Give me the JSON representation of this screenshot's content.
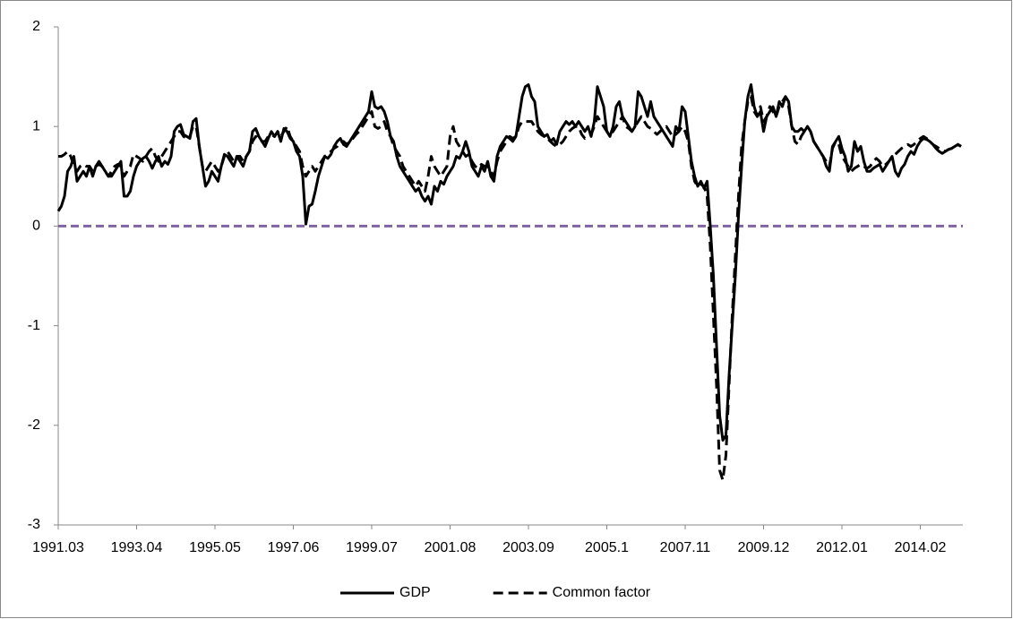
{
  "chart_data": {
    "type": "line",
    "categories": [
      "1991.03",
      null,
      null,
      null,
      null,
      null,
      null,
      null,
      null,
      null,
      null,
      null,
      null,
      null,
      null,
      null,
      null,
      null,
      null,
      null,
      null,
      null,
      null,
      null,
      null,
      "1993.04",
      null,
      null,
      null,
      null,
      null,
      null,
      null,
      null,
      null,
      null,
      null,
      null,
      null,
      null,
      null,
      null,
      null,
      null,
      null,
      null,
      null,
      null,
      null,
      null,
      "1995.05",
      null,
      null,
      null,
      null,
      null,
      null,
      null,
      null,
      null,
      null,
      null,
      null,
      null,
      null,
      null,
      null,
      null,
      null,
      null,
      null,
      null,
      null,
      null,
      null,
      "1997.06",
      null,
      null,
      null,
      null,
      null,
      null,
      null,
      null,
      null,
      null,
      null,
      null,
      null,
      null,
      null,
      null,
      null,
      null,
      null,
      null,
      null,
      null,
      null,
      null,
      "1999.07",
      null,
      null,
      null,
      null,
      null,
      null,
      null,
      null,
      null,
      null,
      null,
      null,
      null,
      null,
      null,
      null,
      null,
      null,
      null,
      null,
      null,
      null,
      null,
      null,
      "2001.08",
      null,
      null,
      null,
      null,
      null,
      null,
      null,
      null,
      null,
      null,
      null,
      null,
      null,
      null,
      null,
      null,
      null,
      null,
      null,
      null,
      null,
      null,
      null,
      null,
      "2003.09",
      null,
      null,
      null,
      null,
      null,
      null,
      null,
      null,
      null,
      null,
      null,
      null,
      null,
      null,
      null,
      null,
      null,
      null,
      null,
      null,
      null,
      null,
      null,
      null,
      "2005.1",
      null,
      null,
      null,
      null,
      null,
      null,
      null,
      null,
      null,
      null,
      null,
      null,
      null,
      null,
      null,
      null,
      null,
      null,
      null,
      null,
      null,
      null,
      null,
      null,
      "2007.11",
      null,
      null,
      null,
      null,
      null,
      null,
      null,
      null,
      null,
      null,
      null,
      null,
      null,
      null,
      null,
      null,
      null,
      null,
      null,
      null,
      null,
      null,
      null,
      null,
      "2009.12",
      null,
      null,
      null,
      null,
      null,
      null,
      null,
      null,
      null,
      null,
      null,
      null,
      null,
      null,
      null,
      null,
      null,
      null,
      null,
      null,
      null,
      null,
      null,
      null,
      "2012.01",
      null,
      null,
      null,
      null,
      null,
      null,
      null,
      null,
      null,
      null,
      null,
      null,
      null,
      null,
      null,
      null,
      null,
      null,
      null,
      null,
      null,
      null,
      null,
      null,
      "2014.02",
      null,
      null,
      null,
      null,
      null,
      null,
      null,
      null,
      null,
      null,
      null,
      null,
      null
    ],
    "series": [
      {
        "name": "GDP",
        "color": "#000000",
        "dash": "solid",
        "values": [
          0.15,
          0.2,
          0.3,
          0.55,
          0.6,
          0.7,
          0.45,
          0.5,
          0.55,
          0.5,
          0.6,
          0.5,
          0.6,
          0.65,
          0.6,
          0.55,
          0.5,
          0.5,
          0.55,
          0.6,
          0.65,
          0.3,
          0.3,
          0.35,
          0.5,
          0.6,
          0.65,
          0.68,
          0.7,
          0.65,
          0.58,
          0.65,
          0.7,
          0.6,
          0.65,
          0.62,
          0.7,
          0.95,
          1.0,
          1.02,
          0.92,
          0.9,
          0.88,
          1.05,
          1.08,
          0.8,
          0.6,
          0.4,
          0.45,
          0.55,
          0.5,
          0.45,
          0.6,
          0.72,
          0.7,
          0.65,
          0.6,
          0.7,
          0.65,
          0.6,
          0.7,
          0.75,
          0.95,
          0.98,
          0.9,
          0.85,
          0.8,
          0.88,
          0.95,
          0.9,
          0.95,
          0.85,
          0.98,
          0.95,
          0.88,
          0.85,
          0.75,
          0.7,
          0.5,
          0.02,
          0.2,
          0.22,
          0.35,
          0.5,
          0.6,
          0.7,
          0.68,
          0.72,
          0.8,
          0.85,
          0.88,
          0.82,
          0.8,
          0.85,
          0.9,
          0.95,
          1.0,
          1.05,
          1.1,
          1.15,
          1.35,
          1.2,
          1.18,
          1.2,
          1.15,
          1.05,
          0.9,
          0.85,
          0.7,
          0.6,
          0.55,
          0.5,
          0.45,
          0.4,
          0.35,
          0.38,
          0.3,
          0.25,
          0.3,
          0.22,
          0.4,
          0.35,
          0.45,
          0.42,
          0.5,
          0.55,
          0.6,
          0.7,
          0.68,
          0.75,
          0.85,
          0.75,
          0.6,
          0.55,
          0.5,
          0.6,
          0.55,
          0.65,
          0.5,
          0.45,
          0.7,
          0.8,
          0.85,
          0.9,
          0.88,
          0.85,
          0.9,
          1.1,
          1.3,
          1.4,
          1.42,
          1.3,
          1.25,
          1.0,
          0.95,
          0.9,
          0.92,
          0.85,
          0.88,
          0.82,
          0.95,
          1.0,
          1.05,
          1.02,
          1.05,
          1.0,
          1.05,
          1.0,
          0.95,
          1.0,
          0.9,
          1.05,
          1.4,
          1.3,
          1.2,
          0.95,
          0.9,
          1.0,
          1.2,
          1.25,
          1.1,
          1.05,
          1.0,
          0.95,
          1.0,
          1.35,
          1.3,
          1.2,
          1.1,
          1.25,
          1.1,
          1.05,
          1.0,
          0.95,
          0.9,
          0.85,
          0.8,
          1.0,
          0.95,
          1.2,
          1.15,
          0.9,
          0.65,
          0.5,
          0.4,
          0.45,
          0.38,
          0.45,
          0.0,
          -0.5,
          -1.2,
          -1.9,
          -2.15,
          -2.1,
          -1.5,
          -1.0,
          -0.5,
          0.1,
          0.6,
          1.05,
          1.3,
          1.42,
          1.2,
          1.1,
          1.15,
          0.95,
          1.1,
          1.15,
          1.2,
          1.1,
          1.25,
          1.2,
          1.3,
          1.25,
          1.0,
          0.95,
          0.95,
          0.98,
          0.95,
          1.0,
          0.95,
          0.85,
          0.8,
          0.75,
          0.7,
          0.6,
          0.55,
          0.8,
          0.85,
          0.9,
          0.78,
          0.7,
          0.55,
          0.6,
          0.85,
          0.75,
          0.8,
          0.65,
          0.55,
          0.55,
          0.58,
          0.6,
          0.62,
          0.55,
          0.6,
          0.65,
          0.7,
          0.55,
          0.5,
          0.58,
          0.62,
          0.7,
          0.75,
          0.72,
          0.8,
          0.85,
          0.88,
          0.87,
          0.85,
          0.82,
          0.78,
          0.75,
          0.73,
          0.75,
          0.77,
          0.78,
          0.8,
          0.82,
          0.8
        ]
      },
      {
        "name": "Common factor",
        "color": "#000000",
        "dash": "dashed",
        "values": [
          0.7,
          0.7,
          0.72,
          0.75,
          0.7,
          0.6,
          0.55,
          0.6,
          0.62,
          0.6,
          0.6,
          0.55,
          0.6,
          0.62,
          0.6,
          0.55,
          0.5,
          0.55,
          0.6,
          0.62,
          0.6,
          0.5,
          0.55,
          0.6,
          0.72,
          0.7,
          0.68,
          0.65,
          0.7,
          0.75,
          0.78,
          0.7,
          0.65,
          0.7,
          0.75,
          0.8,
          0.85,
          0.9,
          0.95,
          0.95,
          0.9,
          0.88,
          0.9,
          1.0,
          1.0,
          0.8,
          0.6,
          0.55,
          0.6,
          0.65,
          0.6,
          0.55,
          0.6,
          0.7,
          0.75,
          0.7,
          0.65,
          0.7,
          0.7,
          0.65,
          0.7,
          0.75,
          0.85,
          0.9,
          0.88,
          0.85,
          0.85,
          0.9,
          0.92,
          0.9,
          0.95,
          0.9,
          0.95,
          1.0,
          0.9,
          0.85,
          0.8,
          0.75,
          0.6,
          0.5,
          0.55,
          0.6,
          0.55,
          0.6,
          0.65,
          0.7,
          0.72,
          0.75,
          0.78,
          0.8,
          0.85,
          0.85,
          0.82,
          0.85,
          0.88,
          0.92,
          0.95,
          1.0,
          1.05,
          1.1,
          1.15,
          1.0,
          0.98,
          1.0,
          1.05,
          0.95,
          0.9,
          0.8,
          0.75,
          0.7,
          0.6,
          0.55,
          0.5,
          0.45,
          0.4,
          0.45,
          0.4,
          0.35,
          0.5,
          0.7,
          0.6,
          0.55,
          0.5,
          0.55,
          0.6,
          0.9,
          1.0,
          0.85,
          0.8,
          0.75,
          0.7,
          0.72,
          0.65,
          0.6,
          0.58,
          0.62,
          0.6,
          0.6,
          0.55,
          0.5,
          0.65,
          0.75,
          0.8,
          0.85,
          0.9,
          0.88,
          0.9,
          1.0,
          1.05,
          1.05,
          1.05,
          1.05,
          1.0,
          0.95,
          0.92,
          0.9,
          0.88,
          0.85,
          0.82,
          0.8,
          0.82,
          0.85,
          0.9,
          0.95,
          0.98,
          1.0,
          1.0,
          0.92,
          0.88,
          0.9,
          0.92,
          1.0,
          1.1,
          1.05,
          1.0,
          0.95,
          0.92,
          0.95,
          1.0,
          1.05,
          1.1,
          1.0,
          0.98,
          0.95,
          1.0,
          1.05,
          1.1,
          1.05,
          1.0,
          0.98,
          0.95,
          0.92,
          0.95,
          0.98,
          1.0,
          0.95,
          0.9,
          0.92,
          0.95,
          1.0,
          0.95,
          0.85,
          0.6,
          0.45,
          0.4,
          0.42,
          0.4,
          0.3,
          -0.2,
          -0.9,
          -1.6,
          -2.45,
          -2.55,
          -2.3,
          -1.6,
          -0.9,
          -0.3,
          0.3,
          0.8,
          1.05,
          1.25,
          1.3,
          1.15,
          1.1,
          1.2,
          1.05,
          1.1,
          1.2,
          1.15,
          1.1,
          1.2,
          1.25,
          1.3,
          1.2,
          1.0,
          0.85,
          0.82,
          0.9,
          0.95,
          1.0,
          0.95,
          0.85,
          0.8,
          0.75,
          0.7,
          0.65,
          0.6,
          0.78,
          0.85,
          0.82,
          0.7,
          0.65,
          0.6,
          0.55,
          0.58,
          0.6,
          0.62,
          0.6,
          0.58,
          0.6,
          0.65,
          0.68,
          0.65,
          0.6,
          0.62,
          0.65,
          0.7,
          0.72,
          0.75,
          0.78,
          0.8,
          0.82,
          0.8,
          0.82,
          0.85,
          0.88,
          0.9,
          0.88,
          0.85,
          0.82,
          0.8,
          0.78,
          0.76,
          0.75,
          0.77,
          0.78,
          0.8,
          0.82,
          0.8
        ]
      }
    ],
    "reference_line": {
      "value": 0,
      "color": "#8064a2"
    },
    "ylim": [
      -3,
      2
    ],
    "yticks": [
      -3,
      -2,
      -1,
      0,
      1,
      2
    ],
    "grid": false,
    "legend": "bottom"
  }
}
